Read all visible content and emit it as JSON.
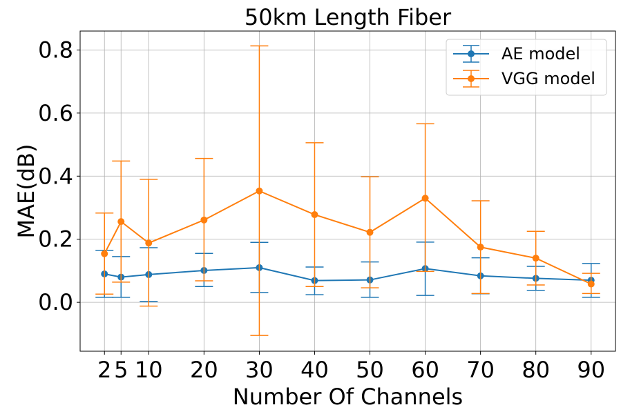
{
  "chart_data": {
    "type": "line",
    "title": "50km Length Fiber",
    "xlabel": "Number Of Channels",
    "ylabel": "MAE(dB)",
    "x": [
      2,
      5,
      10,
      20,
      30,
      40,
      50,
      60,
      70,
      80,
      90
    ],
    "xticks": [
      "2",
      "5",
      "10",
      "20",
      "30",
      "40",
      "50",
      "60",
      "70",
      "80",
      "90"
    ],
    "yticks": [
      "0.0",
      "0.2",
      "0.4",
      "0.6",
      "0.8"
    ],
    "xlim": [
      -2.4,
      94.4
    ],
    "ylim": [
      -0.155,
      0.86
    ],
    "grid": true,
    "legend_position": "top-right",
    "series": [
      {
        "name": "AE model",
        "color": "#1f77b4",
        "values": [
          0.09,
          0.08,
          0.088,
          0.101,
          0.11,
          0.069,
          0.071,
          0.107,
          0.084,
          0.076,
          0.07
        ],
        "err_low": [
          0.016,
          0.016,
          0.003,
          0.05,
          0.031,
          0.024,
          0.016,
          0.022,
          0.027,
          0.038,
          0.016
        ],
        "err_high": [
          0.165,
          0.145,
          0.173,
          0.155,
          0.19,
          0.112,
          0.128,
          0.191,
          0.141,
          0.114,
          0.123
        ]
      },
      {
        "name": "VGG model",
        "color": "#ff7f0e",
        "values": [
          0.154,
          0.256,
          0.188,
          0.261,
          0.353,
          0.278,
          0.222,
          0.33,
          0.175,
          0.14,
          0.058
        ],
        "err_low": [
          0.026,
          0.064,
          -0.012,
          0.068,
          -0.105,
          0.05,
          0.046,
          0.098,
          0.028,
          0.055,
          0.028
        ],
        "err_high": [
          0.283,
          0.448,
          0.39,
          0.456,
          0.813,
          0.506,
          0.398,
          0.566,
          0.322,
          0.225,
          0.092
        ]
      }
    ]
  }
}
